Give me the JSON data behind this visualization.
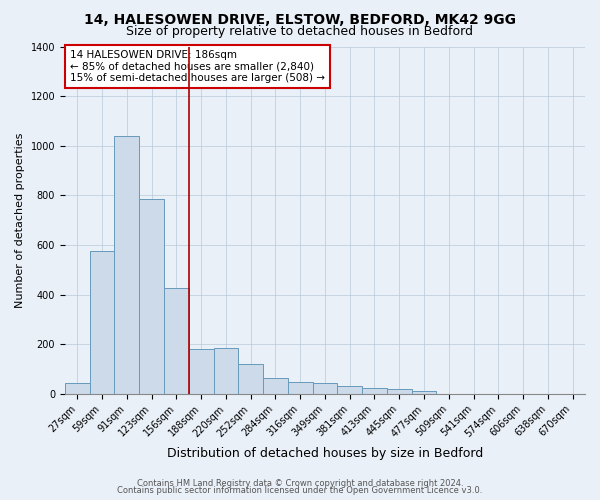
{
  "title1": "14, HALESOWEN DRIVE, ELSTOW, BEDFORD, MK42 9GG",
  "title2": "Size of property relative to detached houses in Bedford",
  "xlabel": "Distribution of detached houses by size in Bedford",
  "ylabel": "Number of detached properties",
  "bar_labels": [
    "27sqm",
    "59sqm",
    "91sqm",
    "123sqm",
    "156sqm",
    "188sqm",
    "220sqm",
    "252sqm",
    "284sqm",
    "316sqm",
    "349sqm",
    "381sqm",
    "413sqm",
    "445sqm",
    "477sqm",
    "509sqm",
    "541sqm",
    "574sqm",
    "606sqm",
    "638sqm",
    "670sqm"
  ],
  "bar_heights": [
    45,
    575,
    1040,
    785,
    425,
    180,
    185,
    120,
    65,
    50,
    45,
    30,
    25,
    20,
    10,
    0,
    0,
    0,
    0,
    0,
    0
  ],
  "bar_color": "#ccdaea",
  "bar_edge_color": "#6699bb",
  "vline_color": "#aa0000",
  "vline_bar_index": 5,
  "annotation_title": "14 HALESOWEN DRIVE: 186sqm",
  "annotation_line1": "← 85% of detached houses are smaller (2,840)",
  "annotation_line2": "15% of semi-detached houses are larger (508) →",
  "annotation_box_color": "#cc0000",
  "ylim": [
    0,
    1400
  ],
  "yticks": [
    0,
    200,
    400,
    600,
    800,
    1000,
    1200,
    1400
  ],
  "bg_color": "#eaf0f8",
  "plot_bg_color": "#eaf0f8",
  "footer1": "Contains HM Land Registry data © Crown copyright and database right 2024.",
  "footer2": "Contains public sector information licensed under the Open Government Licence v3.0.",
  "title_fontsize": 10,
  "subtitle_fontsize": 9,
  "ylabel_fontsize": 8,
  "xlabel_fontsize": 9,
  "tick_fontsize": 7,
  "annot_fontsize": 7.5
}
